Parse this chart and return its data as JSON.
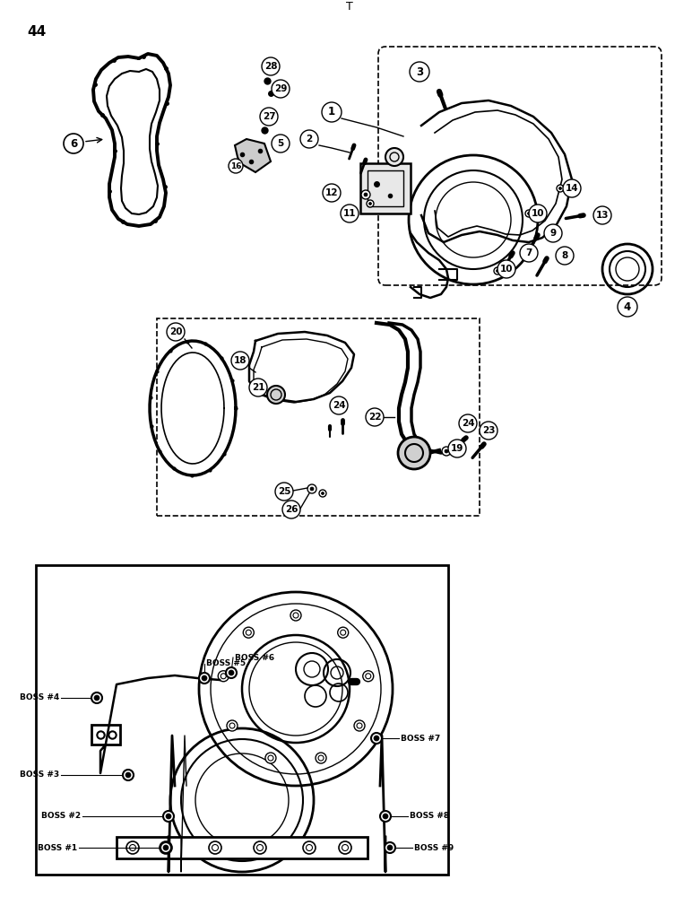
{
  "page_number": "44",
  "background_color": "#ffffff",
  "line_color": "#000000",
  "figsize": [
    7.72,
    10.0
  ],
  "dpi": 100,
  "title_marker": "T",
  "boss_labels": [
    "BOSS #1",
    "BOSS #2",
    "BOSS #3",
    "BOSS #4",
    "BOSS #5",
    "BOSS #6",
    "BOSS #7",
    "BOSS #8",
    "BOSS #9"
  ]
}
